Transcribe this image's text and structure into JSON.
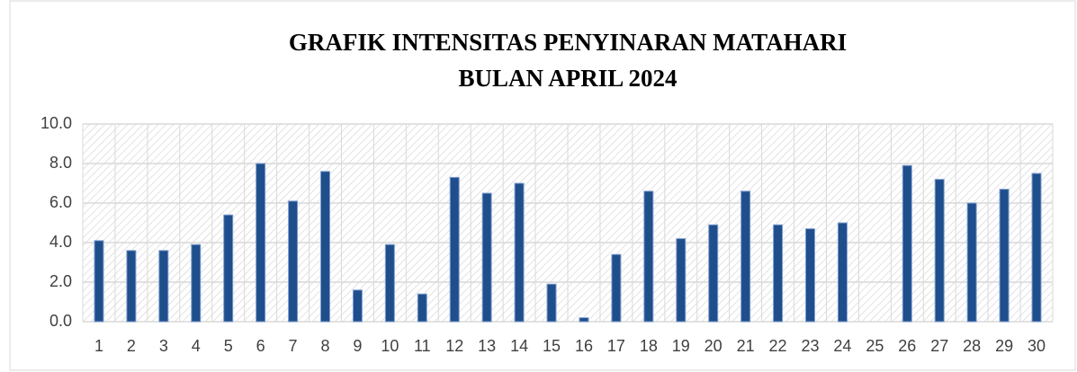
{
  "chart_data": {
    "type": "bar",
    "title": [
      "GRAFIK INTENSITAS PENYINARAN MATAHARI",
      "BULAN APRIL 2024"
    ],
    "categories": [
      "1",
      "2",
      "3",
      "4",
      "5",
      "6",
      "7",
      "8",
      "9",
      "10",
      "11",
      "12",
      "13",
      "14",
      "15",
      "16",
      "17",
      "18",
      "19",
      "20",
      "21",
      "22",
      "23",
      "24",
      "25",
      "26",
      "27",
      "28",
      "29",
      "30"
    ],
    "values": [
      4.1,
      3.6,
      3.6,
      3.9,
      5.4,
      8.0,
      6.1,
      7.6,
      1.6,
      3.9,
      1.4,
      7.3,
      6.5,
      7.0,
      1.9,
      0.2,
      3.4,
      6.6,
      4.2,
      4.9,
      6.6,
      4.9,
      4.7,
      5.0,
      0,
      7.9,
      7.2,
      6.0,
      6.7,
      7.5
    ],
    "color": "#1f4e8c",
    "ylim": [
      0,
      10
    ],
    "yticks": [
      {
        "value": 0,
        "label": "0.0"
      },
      {
        "value": 2,
        "label": "2.0"
      },
      {
        "value": 4,
        "label": "4.0"
      },
      {
        "value": 6,
        "label": "6.0"
      },
      {
        "value": 8,
        "label": "8.0"
      },
      {
        "value": 10,
        "label": "10.0"
      }
    ],
    "grid": true
  }
}
